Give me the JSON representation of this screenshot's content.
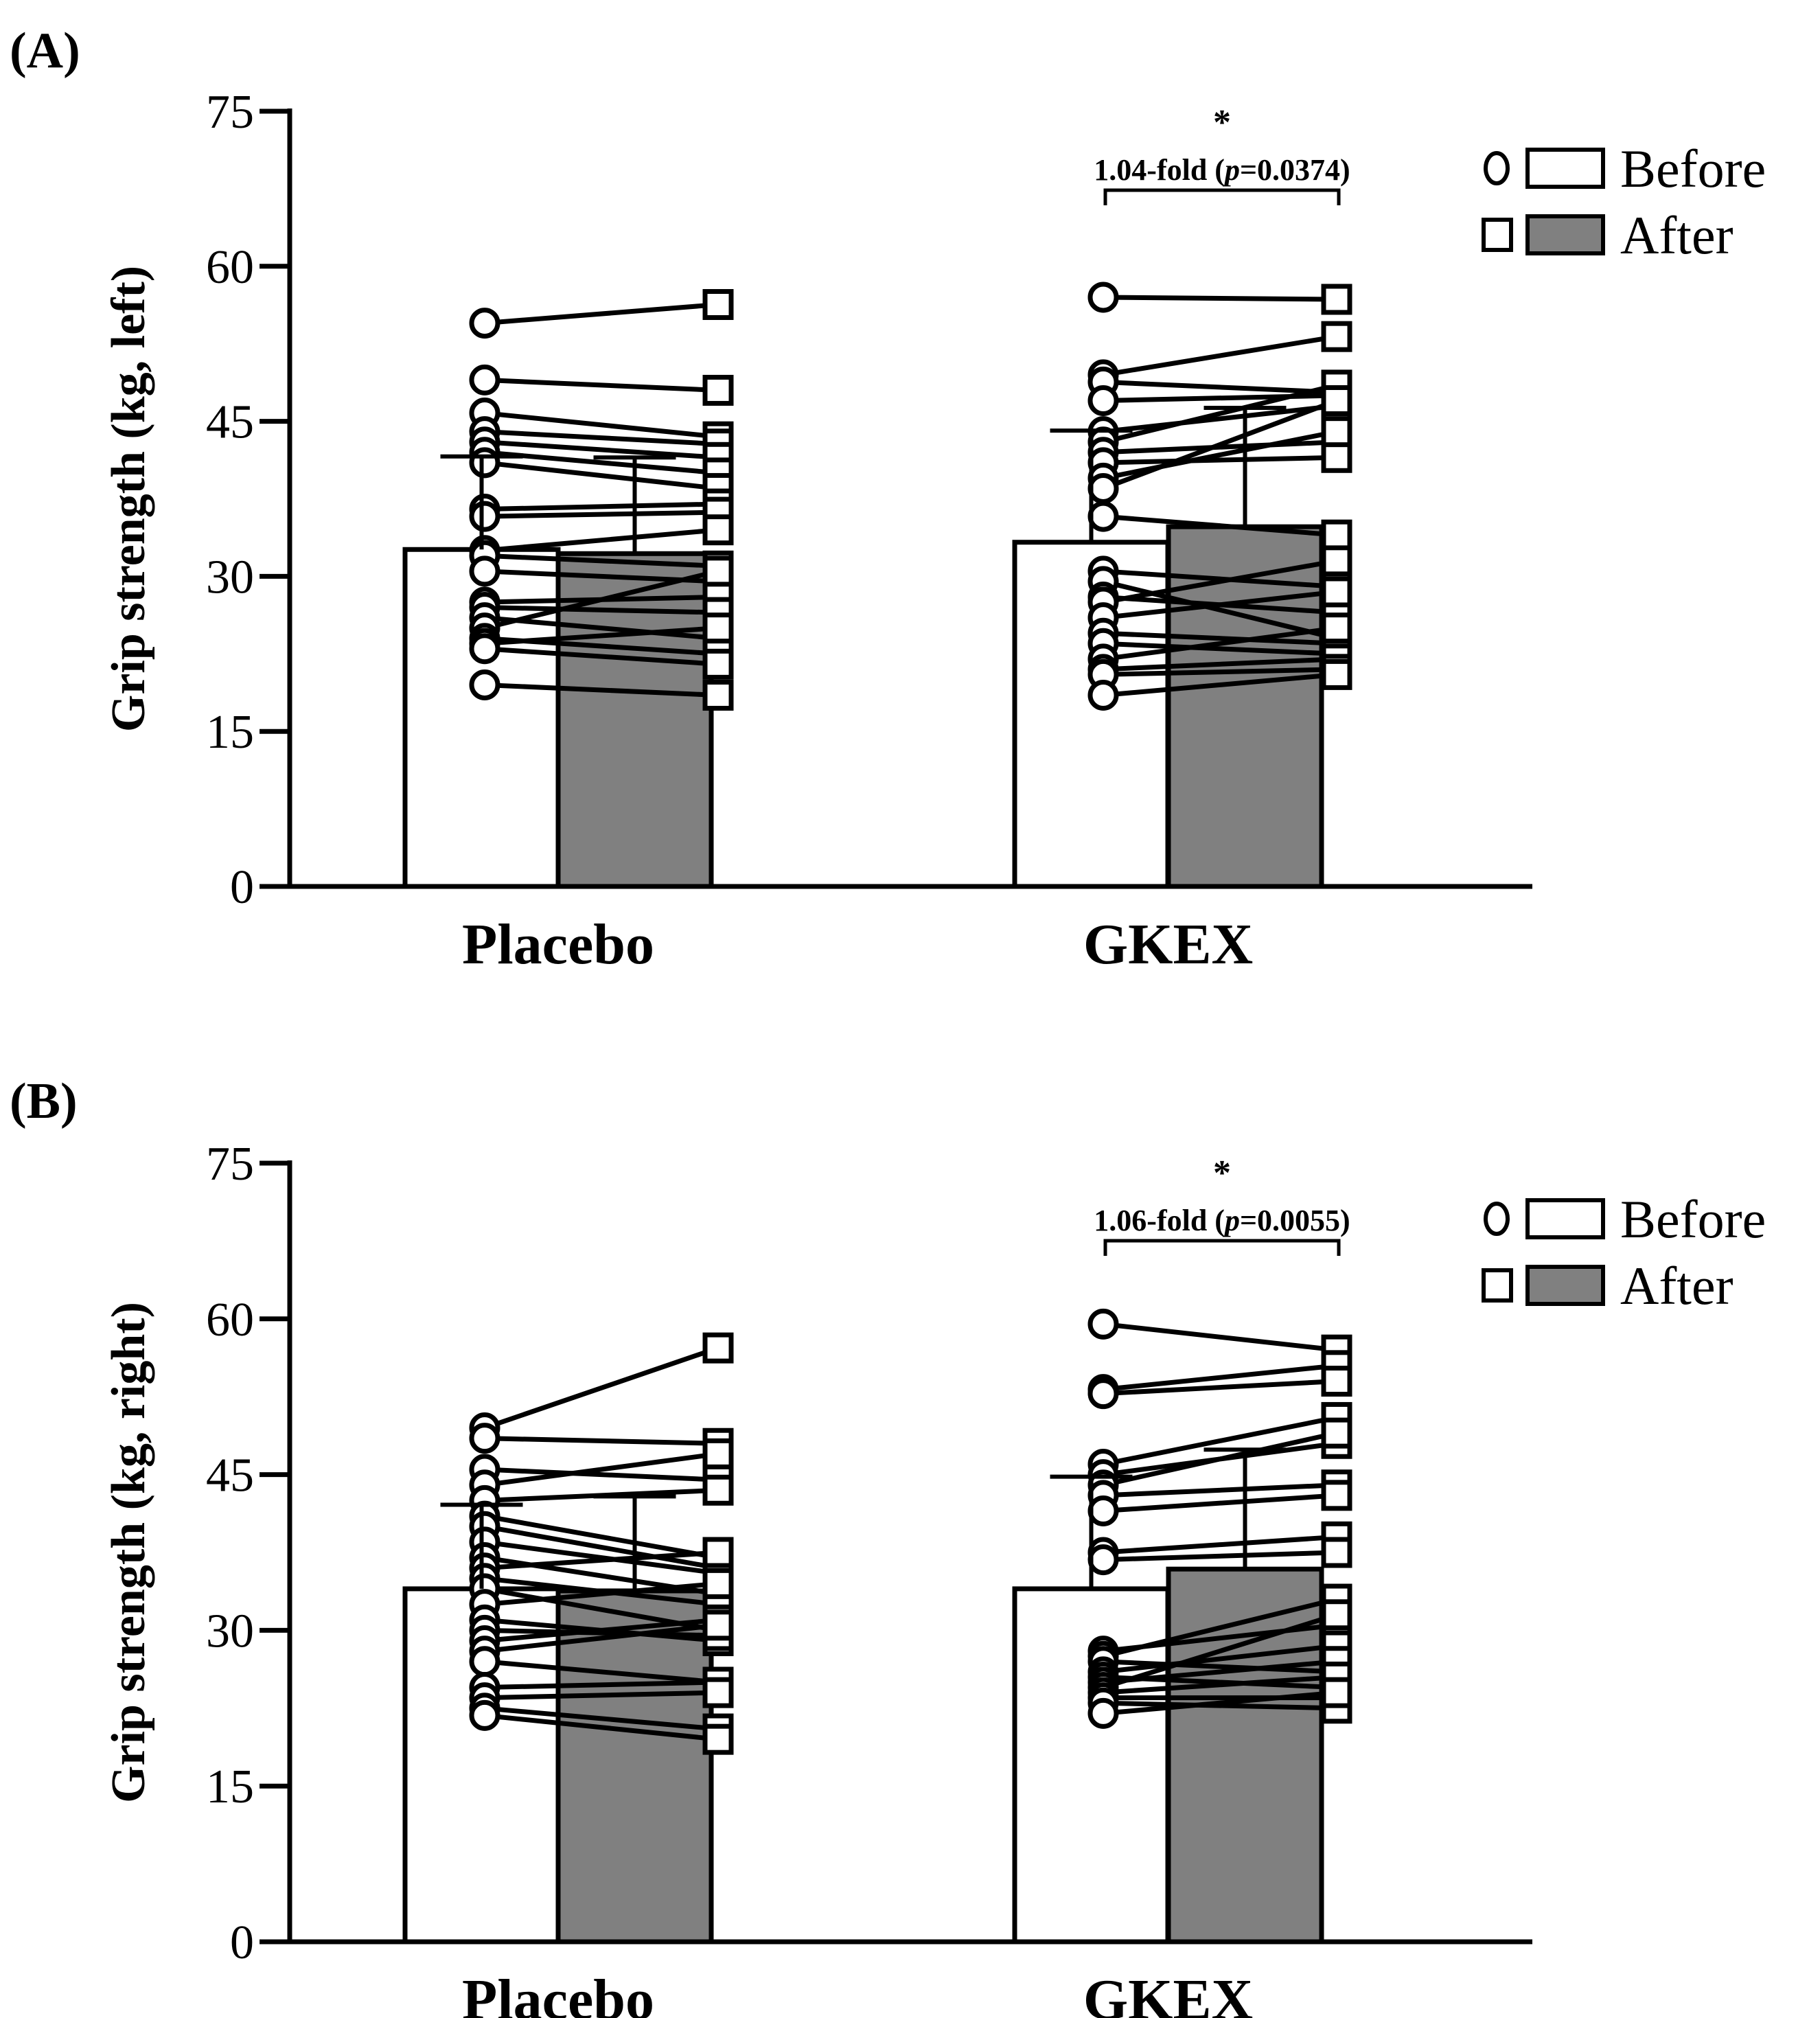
{
  "chart_data": [
    {
      "type": "bar",
      "panel_label": "(A)",
      "ylabel": "Grip strength (kg, left)",
      "ylim": [
        0,
        75
      ],
      "yticks": [
        "0",
        "15",
        "30",
        "45",
        "60",
        "75"
      ],
      "categories": [
        "Placebo",
        "GKEX"
      ],
      "series": [
        {
          "name": "Before",
          "values": [
            32.6,
            33.3
          ],
          "sd": [
            9.0,
            10.8
          ]
        },
        {
          "name": "After",
          "values": [
            32.2,
            34.8
          ],
          "sd": [
            9.3,
            11.5
          ]
        }
      ],
      "legend": [
        "Before",
        "After"
      ],
      "legend_position": "top-right",
      "significance": {
        "category": "GKEX",
        "star": "*",
        "fold": "1.04-fold (",
        "p_italic": "p",
        "p_value": "=0.0374)"
      },
      "individual": [
        [
          [
            54.5,
            56.3
          ],
          [
            49.0,
            48.0
          ],
          [
            45.8,
            43.5
          ],
          [
            44.0,
            42.8
          ],
          [
            43.0,
            41.5
          ],
          [
            42.0,
            40.0
          ],
          [
            41.0,
            38.5
          ],
          [
            36.5,
            37.0
          ],
          [
            35.8,
            36.2
          ],
          [
            32.5,
            34.5
          ],
          [
            32.0,
            31.0
          ],
          [
            30.5,
            29.5
          ],
          [
            27.5,
            28.0
          ],
          [
            27.0,
            26.5
          ],
          [
            26.0,
            24.0
          ],
          [
            25.0,
            30.5
          ],
          [
            24.0,
            22.5
          ],
          [
            23.5,
            25.0
          ],
          [
            23.0,
            21.5
          ],
          [
            19.5,
            18.5
          ]
        ],
        [
          [
            57.0,
            56.8
          ],
          [
            49.5,
            53.2
          ],
          [
            48.8,
            47.8
          ],
          [
            47.0,
            47.5
          ],
          [
            44.0,
            46.5
          ],
          [
            43.0,
            48.5
          ],
          [
            42.0,
            43.0
          ],
          [
            41.0,
            41.5
          ],
          [
            39.5,
            44.0
          ],
          [
            38.5,
            47.0
          ],
          [
            35.8,
            34.0
          ],
          [
            30.5,
            29.0
          ],
          [
            29.5,
            24.0
          ],
          [
            28.0,
            26.5
          ],
          [
            27.5,
            31.5
          ],
          [
            26.0,
            28.5
          ],
          [
            24.5,
            23.5
          ],
          [
            23.5,
            22.5
          ],
          [
            22.0,
            25.0
          ],
          [
            21.0,
            22.0
          ],
          [
            20.5,
            21.0
          ],
          [
            18.5,
            20.5
          ]
        ]
      ]
    },
    {
      "type": "bar",
      "panel_label": "(B)",
      "ylabel": "Grip strength (kg, right)",
      "ylim": [
        0,
        75
      ],
      "yticks": [
        "0",
        "15",
        "30",
        "45",
        "60",
        "75"
      ],
      "categories": [
        "Placebo",
        "GKEX"
      ],
      "series": [
        {
          "name": "Before",
          "values": [
            34.0,
            34.0
          ],
          "sd": [
            8.1,
            10.8
          ]
        },
        {
          "name": "After",
          "values": [
            33.8,
            35.9
          ],
          "sd": [
            9.1,
            11.5
          ]
        }
      ],
      "legend": [
        "Before",
        "After"
      ],
      "legend_position": "top-right",
      "significance": {
        "category": "GKEX",
        "star": "*",
        "fold": "1.06-fold (",
        "p_italic": "p",
        "p_value": "=0.0055)"
      },
      "individual": [
        [
          [
            49.5,
            57.2
          ],
          [
            48.5,
            48.0
          ],
          [
            45.5,
            44.5
          ],
          [
            44.0,
            47.0
          ],
          [
            42.5,
            43.5
          ],
          [
            41.0,
            37.0
          ],
          [
            40.0,
            36.0
          ],
          [
            38.5,
            35.5
          ],
          [
            37.0,
            33.5
          ],
          [
            36.0,
            37.5
          ],
          [
            35.0,
            32.5
          ],
          [
            34.0,
            30.0
          ],
          [
            32.5,
            34.5
          ],
          [
            31.0,
            29.0
          ],
          [
            30.0,
            29.5
          ],
          [
            29.0,
            31.0
          ],
          [
            28.0,
            30.5
          ],
          [
            27.0,
            25.0
          ],
          [
            24.5,
            25.0
          ],
          [
            23.5,
            24.0
          ],
          [
            22.5,
            20.5
          ],
          [
            21.8,
            19.5
          ]
        ],
        [
          [
            59.5,
            57.0
          ],
          [
            53.2,
            55.5
          ],
          [
            52.8,
            54.0
          ],
          [
            46.0,
            50.5
          ],
          [
            45.0,
            48.0
          ],
          [
            44.0,
            49.0
          ],
          [
            43.0,
            44.0
          ],
          [
            41.5,
            43.0
          ],
          [
            37.5,
            39.0
          ],
          [
            36.8,
            37.5
          ],
          [
            28.0,
            30.5
          ],
          [
            27.5,
            33.0
          ],
          [
            27.0,
            26.0
          ],
          [
            26.0,
            28.5
          ],
          [
            25.5,
            24.5
          ],
          [
            25.0,
            27.0
          ],
          [
            24.5,
            31.5
          ],
          [
            24.0,
            25.5
          ],
          [
            23.5,
            23.5
          ],
          [
            23.0,
            22.5
          ],
          [
            22.0,
            24.0
          ]
        ]
      ]
    }
  ]
}
